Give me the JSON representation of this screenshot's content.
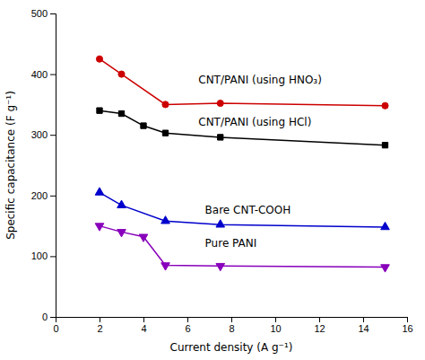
{
  "chart_data": {
    "type": "line",
    "x_label": "Current density (A g⁻¹)",
    "y_label": "Specific capacitance (F g⁻¹)",
    "xlim": [
      0,
      16
    ],
    "ylim": [
      0,
      500
    ],
    "xticks": [
      0,
      2,
      4,
      6,
      8,
      10,
      12,
      14,
      16
    ],
    "yticks": [
      0,
      100,
      200,
      300,
      400,
      500
    ],
    "series": [
      {
        "color": "#cc0000",
        "marker": "circle",
        "x": [
          2,
          3,
          5,
          7.5,
          15
        ],
        "values": [
          425,
          400,
          350,
          352,
          348
        ]
      },
      {
        "color": "#000000",
        "marker": "square",
        "x": [
          2,
          3,
          4,
          5,
          7.5,
          15
        ],
        "values": [
          340,
          335,
          315,
          303,
          296,
          283
        ]
      },
      {
        "color": "#0000cc",
        "marker": "triangle-up",
        "x": [
          2,
          3,
          5,
          7.5,
          15
        ],
        "values": [
          205,
          184,
          158,
          152,
          148
        ]
      },
      {
        "color": "#8800bb",
        "marker": "triangle-down",
        "x": [
          2,
          3,
          4,
          5,
          7.5,
          15
        ],
        "values": [
          150,
          140,
          132,
          85,
          84,
          82
        ]
      }
    ],
    "annotations": [
      {
        "text": "CNT/PANI (using HNO₃)",
        "x": 6.5,
        "y": 390
      },
      {
        "text": "CNT/PANI (using HCl)",
        "x": 6.5,
        "y": 320
      },
      {
        "text": "Bare CNT-COOH",
        "x": 6.8,
        "y": 175
      },
      {
        "text": "Pure PANI",
        "x": 6.8,
        "y": 120
      }
    ]
  }
}
